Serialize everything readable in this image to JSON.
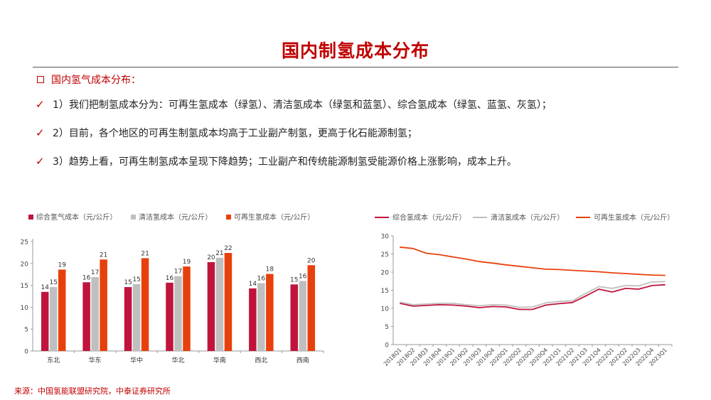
{
  "page": {
    "title": "国内制氢成本分布",
    "section_heading": "国内氢气成本分布：",
    "bullets": [
      "1）我们把制氢成本分为：可再生氢成本（绿氢）、清洁氢成本（绿氢和蓝氢）、综合氢成本（绿氢、蓝氢、灰氢）；",
      "2）目前，各个地区的可再生制氢成本均高于工业副产制氢，更高于化石能源制氢；",
      "3）趋势上看，可再生制氢成本呈现下降趋势；工业副产和传统能源制氢受能源价格上涨影响，成本上升。"
    ],
    "source": "来源：中国氢能联盟研究院，中泰证券研究所"
  },
  "colors": {
    "accent": "#c00000",
    "composite": "#c0143c",
    "clean": "#bfbfbf",
    "renewable": "#e8400c"
  },
  "chart_data": [
    {
      "type": "bar",
      "categories": [
        "东北",
        "华东",
        "华中",
        "华北",
        "华南",
        "西北",
        "西南"
      ],
      "series": [
        {
          "name": "综合氢气成本（元/公斤）",
          "values": [
            13.5,
            15.7,
            14.6,
            15.6,
            20.3,
            14.3,
            15.2
          ],
          "labels": [
            "14",
            "16",
            "15",
            "16",
            "20",
            "14",
            "15"
          ]
        },
        {
          "name": "清洁氢成本（元/公斤）",
          "values": [
            14.6,
            16.9,
            15.3,
            17.1,
            21.3,
            15.5,
            16.0
          ],
          "labels": [
            "15",
            "17",
            "15",
            "17",
            "21",
            "16",
            "16"
          ]
        },
        {
          "name": "可再生氢成本（元/公斤）",
          "values": [
            18.6,
            20.9,
            21.2,
            19.3,
            22.4,
            17.6,
            19.6
          ],
          "labels": [
            "19",
            "21",
            "21",
            "19",
            "22",
            "18",
            "20"
          ]
        }
      ],
      "ylim": [
        0,
        25
      ],
      "yticks": [
        "0",
        "5",
        "10",
        "15",
        "20",
        "25"
      ],
      "legend": "top-left",
      "grid": false
    },
    {
      "type": "line",
      "x": [
        "2018Q1",
        "2018Q2",
        "2018Q3",
        "2018Q4",
        "2019Q1",
        "2019Q2",
        "2019Q3",
        "2019Q4",
        "2020Q1",
        "2020Q2",
        "2020Q3",
        "2020Q4",
        "2021Q1",
        "2021Q2",
        "2021Q3",
        "2021Q4",
        "2022Q1",
        "2022Q2",
        "2022Q3",
        "2022Q4",
        "2023Q1"
      ],
      "series": [
        {
          "name": "综合氢成本（元/公斤）",
          "values": [
            11.4,
            10.6,
            10.8,
            11.0,
            10.9,
            10.6,
            10.2,
            10.5,
            10.4,
            9.7,
            9.7,
            10.9,
            11.3,
            11.6,
            13.4,
            15.3,
            14.5,
            15.5,
            15.3,
            16.3,
            16.5
          ]
        },
        {
          "name": "清洁氢成本（元/公斤）",
          "values": [
            11.7,
            11.0,
            11.2,
            11.4,
            11.4,
            11.0,
            10.7,
            11.0,
            10.9,
            10.3,
            10.4,
            11.5,
            11.9,
            12.1,
            14.1,
            16.0,
            15.5,
            16.3,
            16.2,
            17.3,
            17.4
          ]
        },
        {
          "name": "可再生氢成本（元/公斤）",
          "values": [
            26.9,
            26.5,
            25.2,
            24.8,
            24.2,
            23.6,
            22.9,
            22.5,
            22.0,
            21.6,
            21.2,
            20.8,
            20.7,
            20.5,
            20.3,
            20.1,
            19.8,
            19.6,
            19.4,
            19.2,
            19.1
          ]
        }
      ],
      "ylim": [
        0,
        30
      ],
      "yticks": [
        "0",
        "5",
        "10",
        "15",
        "20",
        "25",
        "30"
      ],
      "legend": "top",
      "grid": false
    }
  ]
}
